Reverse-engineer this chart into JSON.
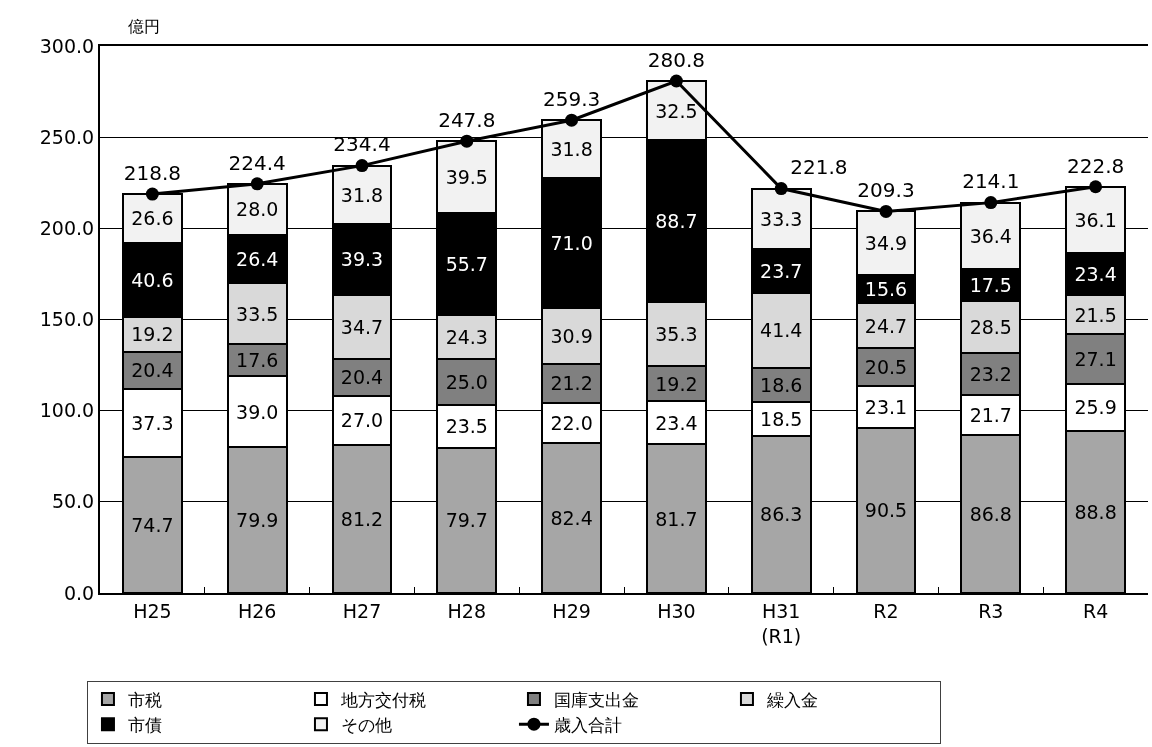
{
  "chart_data": {
    "type": "bar",
    "ylabel": "億円",
    "categories": [
      "H25",
      "H26",
      "H27",
      "H28",
      "H29",
      "H30",
      "H31\n(R1)",
      "R2",
      "R3",
      "R4"
    ],
    "series": [
      {
        "name": "市税",
        "color": "#a6a6a6",
        "values": [
          74.7,
          79.9,
          81.2,
          79.7,
          82.4,
          81.7,
          86.3,
          90.5,
          86.8,
          88.8
        ],
        "value_labels": [
          "74.7",
          "79.9",
          "81.2",
          "79.7",
          "82.4",
          "81.7",
          "86.3",
          "90.5",
          "86.8",
          "88.8"
        ]
      },
      {
        "name": "地方交付税",
        "color": "#ffffff",
        "values": [
          37.3,
          39.0,
          27.0,
          23.5,
          22.0,
          23.4,
          18.5,
          23.1,
          21.7,
          25.9
        ],
        "value_labels": [
          "37.3",
          "39.0",
          "27.0",
          "23.5",
          "22.0",
          "23.4",
          "18.5",
          "23.1",
          "21.7",
          "25.9"
        ]
      },
      {
        "name": "国庫支出金",
        "color": "#808080",
        "values": [
          20.4,
          17.6,
          20.4,
          25.0,
          21.2,
          19.2,
          18.6,
          20.5,
          23.2,
          27.1
        ],
        "value_labels": [
          "20.4",
          "17.6",
          "20.4",
          "25.0",
          "21.2",
          "19.2",
          "18.6",
          "20.5",
          "23.2",
          "27.1"
        ]
      },
      {
        "name": "繰入金",
        "color": "#d9d9d9",
        "values": [
          19.2,
          33.5,
          34.7,
          24.3,
          30.9,
          35.3,
          41.4,
          24.7,
          28.5,
          21.5
        ],
        "value_labels": [
          "19.2",
          "33.5",
          "34.7",
          "24.3",
          "30.9",
          "35.3",
          "41.4",
          "24.7",
          "28.5",
          "21.5"
        ]
      },
      {
        "name": "市債",
        "color": "#000000",
        "values": [
          40.6,
          26.4,
          39.3,
          55.7,
          71.0,
          88.7,
          23.7,
          15.6,
          17.5,
          23.4
        ],
        "value_labels": [
          "40.6",
          "26.4",
          "39.3",
          "55.7",
          "71.0",
          "88.7",
          "23.7",
          "15.6",
          "17.5",
          "23.4"
        ]
      },
      {
        "name": "その他",
        "color": "#f2f2f2",
        "values": [
          26.6,
          28.0,
          31.8,
          39.5,
          31.8,
          32.5,
          33.3,
          34.9,
          36.4,
          36.1
        ],
        "value_labels": [
          "26.6",
          "28.0",
          "31.8",
          "39.5",
          "31.8",
          "32.5",
          "33.3",
          "34.9",
          "36.4",
          "36.1"
        ]
      },
      {
        "name": "歳入合計",
        "type": "line",
        "color": "#000000",
        "values": [
          218.8,
          224.4,
          234.4,
          247.8,
          259.3,
          280.8,
          221.8,
          209.3,
          214.1,
          222.8
        ],
        "value_labels": [
          "218.8",
          "224.4",
          "234.4",
          "247.8",
          "259.3",
          "280.8",
          "221.8",
          "209.3",
          "214.1",
          "222.8"
        ]
      }
    ],
    "stacked": true,
    "ylim": [
      0,
      300
    ],
    "yticks": [
      {
        "value": 0,
        "label": "0.0"
      },
      {
        "value": 50,
        "label": "50.0"
      },
      {
        "value": 100,
        "label": "100.0"
      },
      {
        "value": 150,
        "label": "150.0"
      },
      {
        "value": 200,
        "label": "200.0"
      },
      {
        "value": 250,
        "label": "250.0"
      },
      {
        "value": 300,
        "label": "300.0"
      }
    ],
    "grid": "y",
    "legend": "bottom",
    "marker": "circle"
  }
}
